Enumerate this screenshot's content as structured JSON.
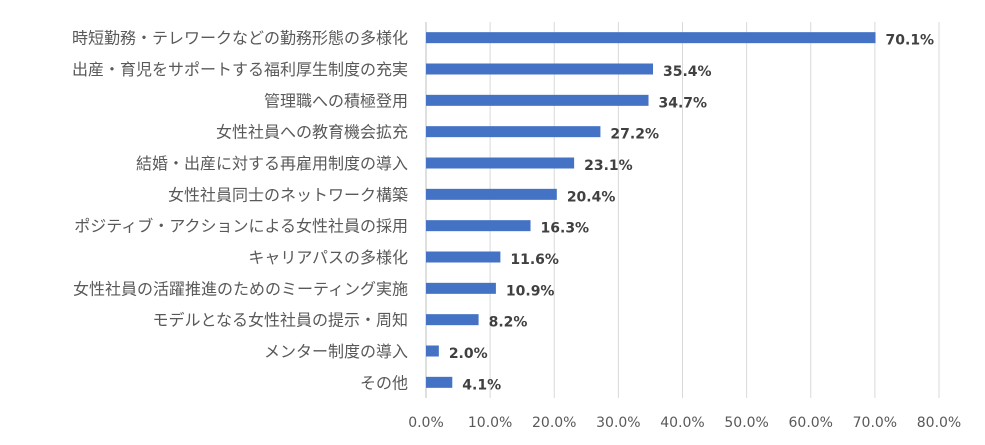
{
  "chart_data": {
    "type": "bar",
    "orientation": "horizontal",
    "title": "",
    "xlabel": "",
    "ylabel": "",
    "xlim": [
      0,
      80
    ],
    "grid": true,
    "legend": "none",
    "bar_color": "#4472c4",
    "categories": [
      "時短勤務・テレワークなどの勤務形態の多様化",
      "出産・育児をサポートする福利厚生制度の充実",
      "管理職への積極登用",
      "女性社員への教育機会拡充",
      "結婚・出産に対する再雇用制度の導入",
      "女性社員同士のネットワーク構築",
      "ポジティブ・アクションによる女性社員の採用",
      "キャリアパスの多様化",
      "女性社員の活躍推進のためのミーティング実施",
      "モデルとなる女性社員の提示・周知",
      "メンター制度の導入",
      "その他"
    ],
    "values": [
      70.1,
      35.4,
      34.7,
      27.2,
      23.1,
      20.4,
      16.3,
      11.6,
      10.9,
      8.2,
      2.0,
      4.1
    ],
    "value_labels": [
      "70.1%",
      "35.4%",
      "34.7%",
      "27.2%",
      "23.1%",
      "20.4%",
      "16.3%",
      "11.6%",
      "10.9%",
      "8.2%",
      "2.0%",
      "4.1%"
    ],
    "ticks": [
      0,
      10,
      20,
      30,
      40,
      50,
      60,
      70,
      80
    ],
    "tick_labels": [
      "0.0%",
      "10.0%",
      "20.0%",
      "30.0%",
      "40.0%",
      "50.0%",
      "60.0%",
      "70.0%",
      "80.0%"
    ]
  }
}
